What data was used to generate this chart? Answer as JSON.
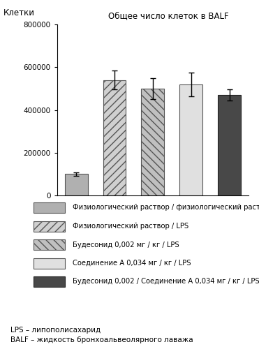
{
  "title": "Общее число клеток в BALF",
  "ylabel": "Клетки",
  "ylim": [
    0,
    800000
  ],
  "yticks": [
    0,
    200000,
    400000,
    600000,
    800000
  ],
  "ytick_labels": [
    "0",
    "200000",
    "400000",
    "600000",
    "800000"
  ],
  "bar_values": [
    100000,
    540000,
    500000,
    520000,
    470000
  ],
  "bar_errors": [
    8000,
    45000,
    50000,
    55000,
    25000
  ],
  "bar_hatches": [
    "",
    "///",
    "\\\\\\",
    "===",
    ""
  ],
  "bar_colors": [
    "#b0b0b0",
    "#d0d0d0",
    "#c0c0c0",
    "#e0e0e0",
    "#484848"
  ],
  "bar_edgecolors": [
    "#555555",
    "#555555",
    "#555555",
    "#555555",
    "#222222"
  ],
  "legend_labels": [
    "Физиологический раствор / физиологический раствор",
    "Физиологический раствор / LPS",
    "Будесонид 0,002 мг / кг / LPS",
    "Соединение А 0,034 мг / кг / LPS",
    "Будесонид 0,002 / Соединение А 0,034 мг / кг / LPS"
  ],
  "legend_hatches": [
    "",
    "///",
    "\\\\\\",
    "===",
    ""
  ],
  "legend_facecolors": [
    "#b0b0b0",
    "#d0d0d0",
    "#c0c0c0",
    "#e0e0e0",
    "#484848"
  ],
  "legend_edgecolors": [
    "#555555",
    "#555555",
    "#555555",
    "#555555",
    "#222222"
  ],
  "footnote1": "LPS – липополисахарид",
  "footnote2": "BALF – жидкость бронхоальвеолярного лаважа",
  "background_color": "#ffffff",
  "figsize": [
    3.71,
    5.0
  ],
  "dpi": 100
}
